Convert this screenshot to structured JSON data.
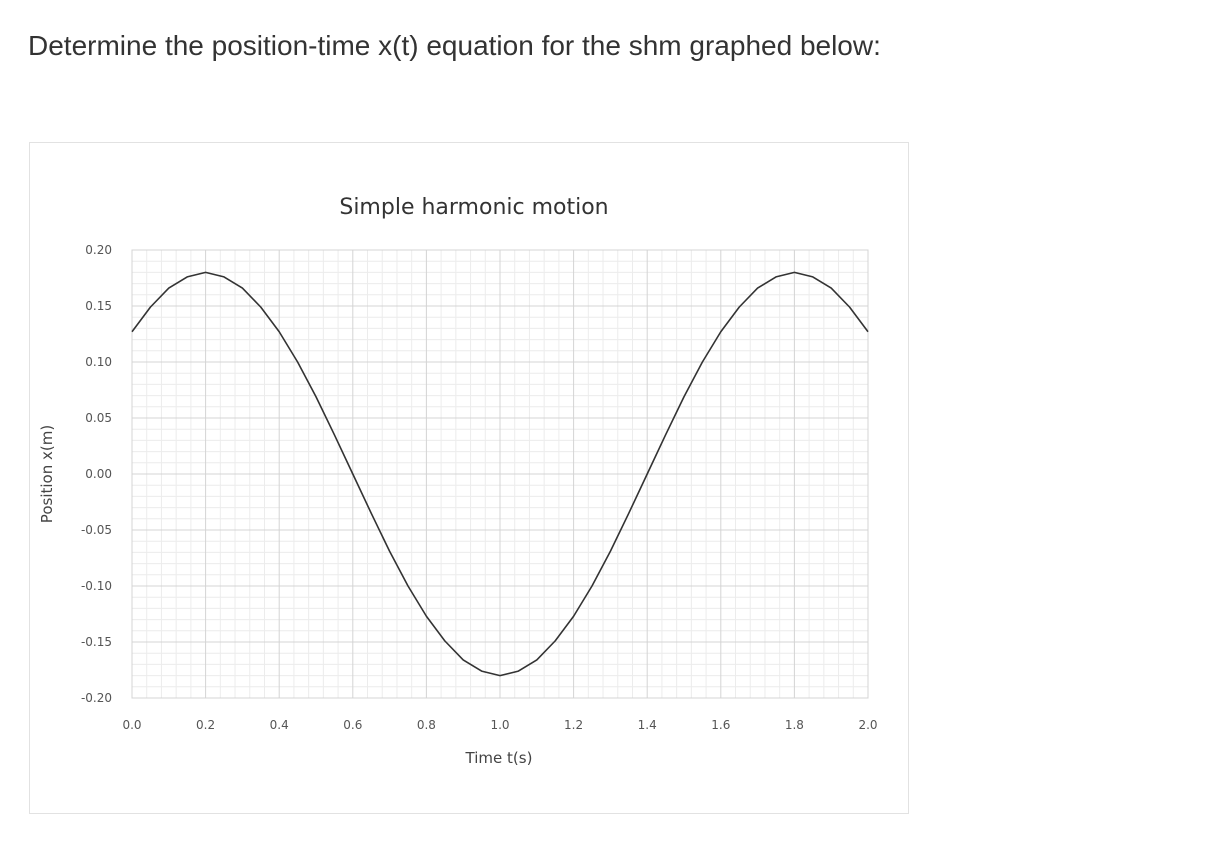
{
  "question": {
    "text": "Determine the position-time x(t) equation for the shm graphed below:"
  },
  "chart_data": {
    "type": "line",
    "title": "Simple harmonic motion",
    "xlabel": "Time t(s)",
    "ylabel": "Position x(m)",
    "xlim": [
      0,
      2.0
    ],
    "ylim": [
      -0.2,
      0.2
    ],
    "xticks": [
      "0.0",
      "0.2",
      "0.4",
      "0.6",
      "0.8",
      "1.0",
      "1.2",
      "1.4",
      "1.6",
      "1.8",
      "2.0"
    ],
    "yticks": [
      "0.20",
      "0.15",
      "0.10",
      "0.05",
      "0.00",
      "-0.05",
      "-0.10",
      "-0.15",
      "-0.20"
    ],
    "grid": true,
    "legend": "none",
    "line_color": "#333333",
    "series": [
      {
        "x": [
          0.0,
          0.05,
          0.1,
          0.15,
          0.2,
          0.25,
          0.3,
          0.35,
          0.4,
          0.45,
          0.5,
          0.55,
          0.6,
          0.65,
          0.7,
          0.75,
          0.8,
          0.85,
          0.9,
          0.95,
          1.0,
          1.05,
          1.1,
          1.15,
          1.2,
          1.25,
          1.3,
          1.35,
          1.4,
          1.45,
          1.5,
          1.55,
          1.6,
          1.65,
          1.7,
          1.75,
          1.8,
          1.85,
          1.9,
          1.95,
          2.0
        ],
        "values": [
          0.127,
          0.149,
          0.166,
          0.176,
          0.18,
          0.176,
          0.166,
          0.149,
          0.127,
          0.1,
          0.069,
          0.035,
          0.0,
          -0.035,
          -0.069,
          -0.1,
          -0.127,
          -0.149,
          -0.166,
          -0.176,
          -0.18,
          -0.176,
          -0.166,
          -0.149,
          -0.127,
          -0.1,
          -0.069,
          -0.035,
          0.0,
          0.035,
          0.069,
          0.1,
          0.127,
          0.149,
          0.166,
          0.176,
          0.18,
          0.176,
          0.166,
          0.149,
          0.127
        ]
      }
    ]
  }
}
